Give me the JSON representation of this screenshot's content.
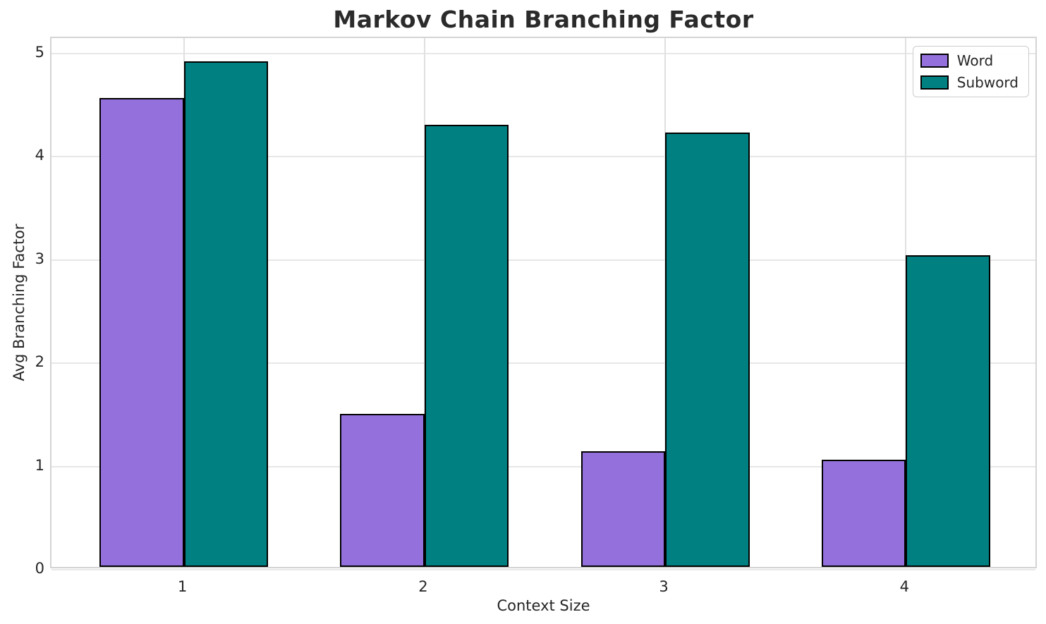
{
  "chart_data": {
    "type": "bar",
    "title": "Markov Chain Branching Factor",
    "xlabel": "Context Size",
    "ylabel": "Avg Branching Factor",
    "categories": [
      "1",
      "2",
      "3",
      "4"
    ],
    "series": [
      {
        "name": "Word",
        "color": "#9370DB",
        "values": [
          4.54,
          1.48,
          1.12,
          1.04
        ]
      },
      {
        "name": "Subword",
        "color": "#008080",
        "values": [
          4.9,
          4.28,
          4.21,
          3.02
        ]
      }
    ],
    "ylim": [
      0,
      5.15
    ],
    "yticks": [
      0,
      1,
      2,
      3,
      4,
      5
    ],
    "bar_edge_color": "#000000",
    "grid": true,
    "legend_position": "upper right"
  },
  "style": {
    "background": "#ffffff",
    "grid_color": "#e7e7e7",
    "spine_color": "#d4d4d4",
    "text_color": "#262626"
  }
}
